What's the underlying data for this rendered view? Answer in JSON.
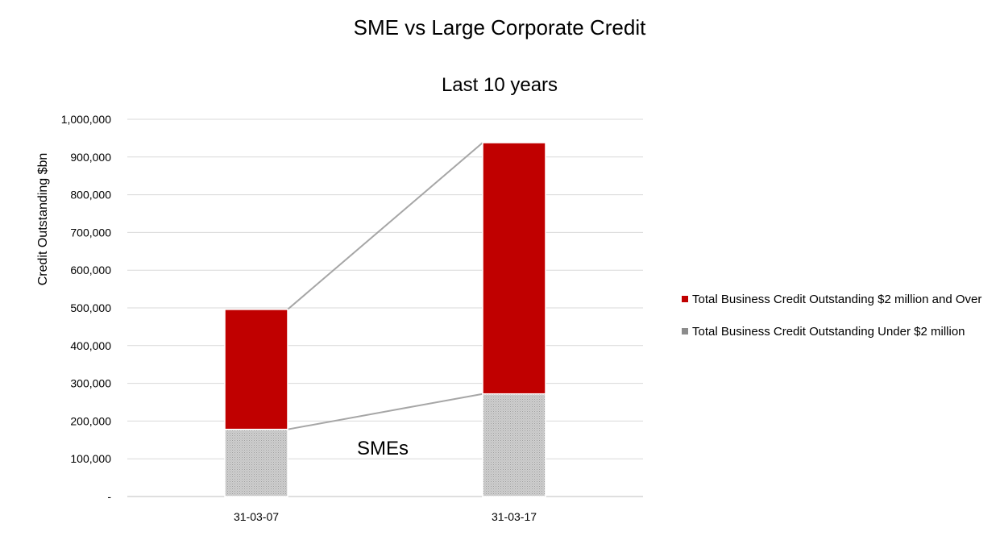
{
  "chart_data": {
    "type": "bar",
    "stacked": true,
    "title": "SME vs Large Corporate Credit",
    "subtitle": "Last 10 years",
    "ylabel": "Credit Outstanding $bn",
    "xlabel": "",
    "ylim": [
      0,
      1000000
    ],
    "yticks": [
      0,
      100000,
      200000,
      300000,
      400000,
      500000,
      600000,
      700000,
      800000,
      900000,
      1000000
    ],
    "ytick_labels": [
      "-",
      "100,000",
      "200,000",
      "300,000",
      "400,000",
      "500,000",
      "600,000",
      "700,000",
      "800,000",
      "900,000",
      "1,000,000"
    ],
    "categories": [
      "31-03-07",
      "31-03-17"
    ],
    "series": [
      {
        "name": "Total Business Credit Outstanding Under $2 million",
        "values": [
          178000,
          272000
        ],
        "color": "#c0c0c0",
        "pattern": "fine-dots"
      },
      {
        "name": "Total Business Credit Outstanding $2 million and Over",
        "values": [
          318000,
          666000
        ],
        "color": "#c00000"
      }
    ],
    "annotations": [
      {
        "text": "SMEs"
      }
    ],
    "series_lines": true,
    "grid": true,
    "legend_position": "right",
    "legend_order": [
      1,
      0
    ]
  }
}
